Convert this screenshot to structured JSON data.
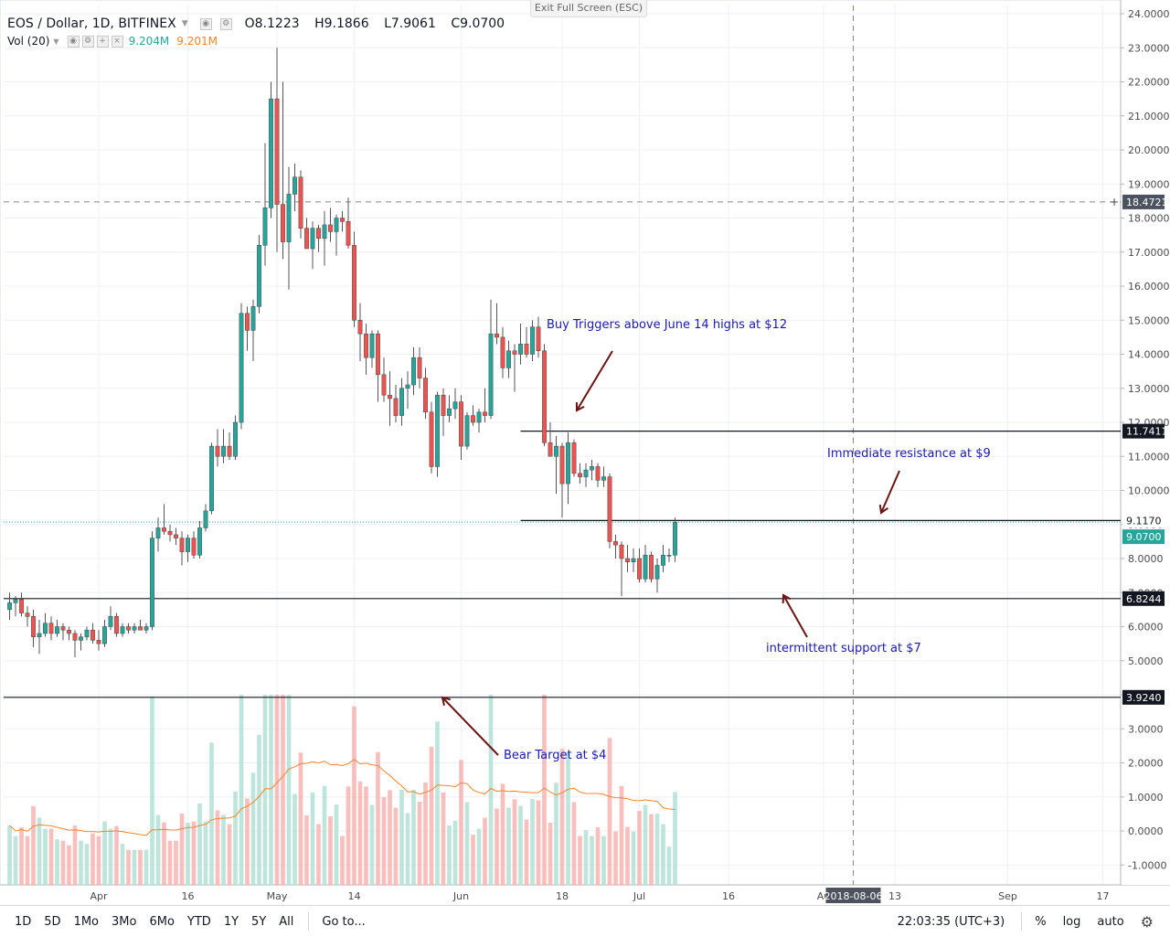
{
  "header": {
    "symbol": "EOS / Dollar, 1D, BITFINEX",
    "open": "O8.1223",
    "high": "H9.1866",
    "low": "L7.9061",
    "close": "C9.0700",
    "exit_fullscreen": "Exit Full Screen (ESC)"
  },
  "volume_legend": {
    "label": "Vol (20)",
    "value1": "9.204M",
    "value2": "9.201M"
  },
  "annotations": {
    "buy_triggers": "Buy Triggers above June 14 highs at $12",
    "immediate_resistance": "Immediate resistance at $9",
    "intermittent_support": "intermittent support at $7",
    "bear_target": "Bear Target at $4"
  },
  "price_labels": {
    "crosshair": "18.4721",
    "resistance_high": "11.7411",
    "resistance_mid": "9.1170",
    "current": "9.0700",
    "support": "6.8244",
    "bear": "3.9240",
    "crosshair_date": "2018-08-06"
  },
  "bottom_bar": {
    "timeframes": [
      "1D",
      "5D",
      "1Mo",
      "3Mo",
      "6Mo",
      "YTD",
      "1Y",
      "5Y",
      "All"
    ],
    "goto": "Go to...",
    "clock": "22:03:35 (UTC+3)",
    "percent": "%",
    "log": "log",
    "auto": "auto"
  },
  "colors": {
    "up": "#26a69a",
    "down": "#ef5350",
    "annotation": "#1a1aad",
    "volume_ma": "#f5842b"
  },
  "chart_data": {
    "type": "candlestick",
    "title": "EOS / Dollar, 1D, BITFINEX",
    "y_axis_ticks": [
      "24.0000",
      "23.0000",
      "22.0000",
      "21.0000",
      "20.0000",
      "19.0000",
      "18.0000",
      "17.0000",
      "16.0000",
      "15.0000",
      "14.0000",
      "13.0000",
      "12.0000",
      "11.0000",
      "10.0000",
      "9.0000",
      "8.0000",
      "7.0000",
      "6.0000",
      "5.0000",
      "4.0000",
      "3.0000",
      "2.0000",
      "1.0000",
      "0.0000",
      "-1.0000"
    ],
    "y_range": [
      -1.6,
      24.3
    ],
    "x_axis_ticks": [
      {
        "label": "Apr",
        "date": "2018-04-01"
      },
      {
        "label": "16",
        "date": "2018-04-16"
      },
      {
        "label": "May",
        "date": "2018-05-01"
      },
      {
        "label": "14",
        "date": "2018-05-14"
      },
      {
        "label": "Jun",
        "date": "2018-06-01"
      },
      {
        "label": "18",
        "date": "2018-06-18"
      },
      {
        "label": "Jul",
        "date": "2018-07-01"
      },
      {
        "label": "16",
        "date": "2018-07-16"
      },
      {
        "label": "Au",
        "date": "2018-08-01"
      },
      {
        "label": "13",
        "date": "2018-08-13"
      },
      {
        "label": "Sep",
        "date": "2018-09-01"
      },
      {
        "label": "17",
        "date": "2018-09-17"
      }
    ],
    "date_range": [
      "2018-03-16",
      "2018-09-20"
    ],
    "horizontal_levels": [
      {
        "value": 11.7411,
        "from": "2018-06-11"
      },
      {
        "value": 9.117,
        "from": "2018-06-11"
      },
      {
        "value": 6.8244,
        "from": "2018-03-16"
      },
      {
        "value": 3.924,
        "from": "2018-03-16"
      }
    ],
    "crosshair": {
      "value": 18.4721,
      "date": "2018-08-06"
    },
    "candles": [
      {
        "date": "2018-03-17",
        "o": 6.5,
        "h": 7.0,
        "l": 6.2,
        "c": 6.7
      },
      {
        "date": "2018-03-18",
        "o": 6.7,
        "h": 6.9,
        "l": 6.3,
        "c": 6.8
      },
      {
        "date": "2018-03-19",
        "o": 6.8,
        "h": 7.0,
        "l": 6.3,
        "c": 6.4
      },
      {
        "date": "2018-03-20",
        "o": 6.4,
        "h": 6.6,
        "l": 6.0,
        "c": 6.3
      },
      {
        "date": "2018-03-21",
        "o": 6.3,
        "h": 6.5,
        "l": 5.4,
        "c": 5.7
      },
      {
        "date": "2018-03-22",
        "o": 5.7,
        "h": 6.2,
        "l": 5.2,
        "c": 5.8
      },
      {
        "date": "2018-03-23",
        "o": 5.8,
        "h": 6.4,
        "l": 5.7,
        "c": 6.1
      },
      {
        "date": "2018-03-24",
        "o": 6.1,
        "h": 6.3,
        "l": 5.6,
        "c": 5.8
      },
      {
        "date": "2018-03-25",
        "o": 5.8,
        "h": 6.2,
        "l": 5.7,
        "c": 6.0
      },
      {
        "date": "2018-03-26",
        "o": 6.0,
        "h": 6.1,
        "l": 5.6,
        "c": 5.9
      },
      {
        "date": "2018-03-27",
        "o": 5.9,
        "h": 6.0,
        "l": 5.6,
        "c": 5.8
      },
      {
        "date": "2018-03-28",
        "o": 5.8,
        "h": 5.9,
        "l": 5.1,
        "c": 5.6
      },
      {
        "date": "2018-03-29",
        "o": 5.6,
        "h": 5.8,
        "l": 5.3,
        "c": 5.7
      },
      {
        "date": "2018-03-30",
        "o": 5.7,
        "h": 6.0,
        "l": 5.6,
        "c": 5.9
      },
      {
        "date": "2018-03-31",
        "o": 5.9,
        "h": 6.1,
        "l": 5.5,
        "c": 5.6
      },
      {
        "date": "2018-04-01",
        "o": 5.6,
        "h": 5.9,
        "l": 5.3,
        "c": 5.5
      },
      {
        "date": "2018-04-02",
        "o": 5.5,
        "h": 6.2,
        "l": 5.4,
        "c": 6.0
      },
      {
        "date": "2018-04-03",
        "o": 6.0,
        "h": 6.6,
        "l": 5.9,
        "c": 6.3
      },
      {
        "date": "2018-04-04",
        "o": 6.3,
        "h": 6.4,
        "l": 5.7,
        "c": 5.8
      },
      {
        "date": "2018-04-05",
        "o": 5.8,
        "h": 6.1,
        "l": 5.7,
        "c": 6.0
      },
      {
        "date": "2018-04-06",
        "o": 6.0,
        "h": 6.1,
        "l": 5.8,
        "c": 5.9
      },
      {
        "date": "2018-04-07",
        "o": 5.9,
        "h": 6.1,
        "l": 5.8,
        "c": 6.0
      },
      {
        "date": "2018-04-08",
        "o": 6.0,
        "h": 6.2,
        "l": 5.9,
        "c": 5.9
      },
      {
        "date": "2018-04-09",
        "o": 5.9,
        "h": 6.1,
        "l": 5.8,
        "c": 6.0
      },
      {
        "date": "2018-04-10",
        "o": 6.0,
        "h": 8.8,
        "l": 5.9,
        "c": 8.6
      },
      {
        "date": "2018-04-11",
        "o": 8.6,
        "h": 9.2,
        "l": 8.2,
        "c": 8.9
      },
      {
        "date": "2018-04-12",
        "o": 8.9,
        "h": 9.6,
        "l": 8.7,
        "c": 8.8
      },
      {
        "date": "2018-04-13",
        "o": 8.8,
        "h": 9.0,
        "l": 8.5,
        "c": 8.7
      },
      {
        "date": "2018-04-14",
        "o": 8.7,
        "h": 8.9,
        "l": 8.4,
        "c": 8.6
      },
      {
        "date": "2018-04-15",
        "o": 8.6,
        "h": 8.8,
        "l": 7.8,
        "c": 8.2
      },
      {
        "date": "2018-04-16",
        "o": 8.2,
        "h": 8.7,
        "l": 7.9,
        "c": 8.6
      },
      {
        "date": "2018-04-17",
        "o": 8.6,
        "h": 8.8,
        "l": 8.0,
        "c": 8.1
      },
      {
        "date": "2018-04-18",
        "o": 8.1,
        "h": 9.1,
        "l": 8.0,
        "c": 8.9
      },
      {
        "date": "2018-04-19",
        "o": 8.9,
        "h": 9.6,
        "l": 8.8,
        "c": 9.4
      },
      {
        "date": "2018-04-20",
        "o": 9.4,
        "h": 11.4,
        "l": 9.3,
        "c": 11.3
      },
      {
        "date": "2018-04-21",
        "o": 11.3,
        "h": 11.8,
        "l": 10.7,
        "c": 11.0
      },
      {
        "date": "2018-04-22",
        "o": 11.0,
        "h": 11.8,
        "l": 10.8,
        "c": 11.3
      },
      {
        "date": "2018-04-23",
        "o": 11.3,
        "h": 11.7,
        "l": 10.9,
        "c": 11.0
      },
      {
        "date": "2018-04-24",
        "o": 11.0,
        "h": 12.2,
        "l": 10.9,
        "c": 12.0
      },
      {
        "date": "2018-04-25",
        "o": 12.0,
        "h": 15.5,
        "l": 11.8,
        "c": 15.2
      },
      {
        "date": "2018-04-26",
        "o": 15.2,
        "h": 15.4,
        "l": 14.1,
        "c": 14.7
      },
      {
        "date": "2018-04-27",
        "o": 14.7,
        "h": 15.6,
        "l": 13.8,
        "c": 15.4
      },
      {
        "date": "2018-04-28",
        "o": 15.4,
        "h": 17.5,
        "l": 15.2,
        "c": 17.2
      },
      {
        "date": "2018-04-29",
        "o": 17.2,
        "h": 20.2,
        "l": 16.6,
        "c": 18.3
      },
      {
        "date": "2018-04-30",
        "o": 18.3,
        "h": 22.0,
        "l": 18.0,
        "c": 21.5
      },
      {
        "date": "2018-05-01",
        "o": 21.5,
        "h": 23.0,
        "l": 17.0,
        "c": 18.4
      },
      {
        "date": "2018-05-02",
        "o": 18.4,
        "h": 22.0,
        "l": 16.8,
        "c": 17.3
      },
      {
        "date": "2018-05-03",
        "o": 17.3,
        "h": 19.5,
        "l": 15.9,
        "c": 18.7
      },
      {
        "date": "2018-05-04",
        "o": 18.7,
        "h": 19.6,
        "l": 18.2,
        "c": 19.2
      },
      {
        "date": "2018-05-05",
        "o": 19.2,
        "h": 19.4,
        "l": 17.4,
        "c": 17.7
      },
      {
        "date": "2018-05-06",
        "o": 17.7,
        "h": 18.0,
        "l": 17.1,
        "c": 17.1
      },
      {
        "date": "2018-05-07",
        "o": 17.1,
        "h": 17.9,
        "l": 16.5,
        "c": 17.7
      },
      {
        "date": "2018-05-08",
        "o": 17.7,
        "h": 17.8,
        "l": 17.0,
        "c": 17.4
      },
      {
        "date": "2018-05-09",
        "o": 17.4,
        "h": 18.2,
        "l": 16.6,
        "c": 17.8
      },
      {
        "date": "2018-05-10",
        "o": 17.8,
        "h": 18.3,
        "l": 17.3,
        "c": 17.6
      },
      {
        "date": "2018-05-11",
        "o": 17.6,
        "h": 18.1,
        "l": 16.9,
        "c": 18.0
      },
      {
        "date": "2018-05-12",
        "o": 18.0,
        "h": 18.2,
        "l": 17.6,
        "c": 17.9
      },
      {
        "date": "2018-05-13",
        "o": 17.9,
        "h": 18.6,
        "l": 17.1,
        "c": 17.2
      },
      {
        "date": "2018-05-14",
        "o": 17.2,
        "h": 17.6,
        "l": 14.8,
        "c": 15.0
      },
      {
        "date": "2018-05-15",
        "o": 15.0,
        "h": 15.5,
        "l": 13.8,
        "c": 14.6
      },
      {
        "date": "2018-05-16",
        "o": 14.6,
        "h": 14.9,
        "l": 13.4,
        "c": 13.9
      },
      {
        "date": "2018-05-17",
        "o": 13.9,
        "h": 14.7,
        "l": 13.6,
        "c": 14.6
      },
      {
        "date": "2018-05-18",
        "o": 14.6,
        "h": 14.7,
        "l": 12.6,
        "c": 13.4
      },
      {
        "date": "2018-05-19",
        "o": 13.4,
        "h": 13.9,
        "l": 12.6,
        "c": 12.8
      },
      {
        "date": "2018-05-20",
        "o": 12.8,
        "h": 13.5,
        "l": 11.9,
        "c": 12.7
      },
      {
        "date": "2018-05-21",
        "o": 12.7,
        "h": 13.1,
        "l": 12.0,
        "c": 12.2
      },
      {
        "date": "2018-05-22",
        "o": 12.2,
        "h": 13.3,
        "l": 11.9,
        "c": 13.0
      },
      {
        "date": "2018-05-23",
        "o": 13.0,
        "h": 13.5,
        "l": 12.4,
        "c": 13.1
      },
      {
        "date": "2018-05-24",
        "o": 13.1,
        "h": 14.2,
        "l": 12.8,
        "c": 13.9
      },
      {
        "date": "2018-05-25",
        "o": 13.9,
        "h": 14.2,
        "l": 13.0,
        "c": 13.3
      },
      {
        "date": "2018-05-26",
        "o": 13.3,
        "h": 13.6,
        "l": 12.1,
        "c": 12.3
      },
      {
        "date": "2018-05-27",
        "o": 12.3,
        "h": 12.6,
        "l": 10.5,
        "c": 10.7
      },
      {
        "date": "2018-05-28",
        "o": 10.7,
        "h": 12.9,
        "l": 10.4,
        "c": 12.8
      },
      {
        "date": "2018-05-29",
        "o": 12.8,
        "h": 13.0,
        "l": 11.6,
        "c": 12.2
      },
      {
        "date": "2018-05-30",
        "o": 12.2,
        "h": 12.8,
        "l": 12.0,
        "c": 12.4
      },
      {
        "date": "2018-05-31",
        "o": 12.4,
        "h": 13.0,
        "l": 12.1,
        "c": 12.6
      },
      {
        "date": "2018-06-01",
        "o": 12.6,
        "h": 12.8,
        "l": 10.9,
        "c": 11.3
      },
      {
        "date": "2018-06-02",
        "o": 11.3,
        "h": 12.3,
        "l": 11.2,
        "c": 12.2
      },
      {
        "date": "2018-06-03",
        "o": 12.2,
        "h": 12.5,
        "l": 11.9,
        "c": 12.0
      },
      {
        "date": "2018-06-04",
        "o": 12.0,
        "h": 12.4,
        "l": 11.7,
        "c": 12.3
      },
      {
        "date": "2018-06-05",
        "o": 12.3,
        "h": 13.0,
        "l": 12.0,
        "c": 12.2
      },
      {
        "date": "2018-06-06",
        "o": 12.2,
        "h": 15.6,
        "l": 12.1,
        "c": 14.6
      },
      {
        "date": "2018-06-07",
        "o": 14.6,
        "h": 15.5,
        "l": 14.3,
        "c": 14.5
      },
      {
        "date": "2018-06-08",
        "o": 14.5,
        "h": 14.8,
        "l": 13.3,
        "c": 13.6
      },
      {
        "date": "2018-06-09",
        "o": 13.6,
        "h": 14.4,
        "l": 13.3,
        "c": 14.1
      },
      {
        "date": "2018-06-10",
        "o": 14.1,
        "h": 14.3,
        "l": 12.9,
        "c": 14.0
      },
      {
        "date": "2018-06-11",
        "o": 14.0,
        "h": 14.9,
        "l": 13.7,
        "c": 14.3
      },
      {
        "date": "2018-06-12",
        "o": 14.3,
        "h": 14.8,
        "l": 13.9,
        "c": 14.0
      },
      {
        "date": "2018-06-13",
        "o": 14.0,
        "h": 15.0,
        "l": 13.8,
        "c": 14.8
      },
      {
        "date": "2018-06-14",
        "o": 14.8,
        "h": 15.1,
        "l": 13.9,
        "c": 14.1
      },
      {
        "date": "2018-06-15",
        "o": 14.1,
        "h": 14.3,
        "l": 11.3,
        "c": 11.4
      },
      {
        "date": "2018-06-16",
        "o": 11.4,
        "h": 12.0,
        "l": 11.2,
        "c": 11.0
      },
      {
        "date": "2018-06-17",
        "o": 11.0,
        "h": 11.6,
        "l": 9.9,
        "c": 11.3
      },
      {
        "date": "2018-06-18",
        "o": 11.3,
        "h": 11.4,
        "l": 9.2,
        "c": 10.2
      },
      {
        "date": "2018-06-19",
        "o": 10.2,
        "h": 11.7,
        "l": 9.6,
        "c": 11.4
      },
      {
        "date": "2018-06-20",
        "o": 11.4,
        "h": 11.5,
        "l": 10.4,
        "c": 10.5
      },
      {
        "date": "2018-06-21",
        "o": 10.5,
        "h": 10.8,
        "l": 10.2,
        "c": 10.4
      },
      {
        "date": "2018-06-22",
        "o": 10.4,
        "h": 10.8,
        "l": 10.1,
        "c": 10.6
      },
      {
        "date": "2018-06-23",
        "o": 10.6,
        "h": 10.9,
        "l": 10.3,
        "c": 10.7
      },
      {
        "date": "2018-06-24",
        "o": 10.7,
        "h": 10.8,
        "l": 10.1,
        "c": 10.3
      },
      {
        "date": "2018-06-25",
        "o": 10.3,
        "h": 10.7,
        "l": 10.1,
        "c": 10.4
      },
      {
        "date": "2018-06-26",
        "o": 10.4,
        "h": 10.5,
        "l": 8.3,
        "c": 8.5
      },
      {
        "date": "2018-06-27",
        "o": 8.5,
        "h": 8.7,
        "l": 8.0,
        "c": 8.4
      },
      {
        "date": "2018-06-28",
        "o": 8.4,
        "h": 8.5,
        "l": 6.9,
        "c": 8.0
      },
      {
        "date": "2018-06-29",
        "o": 8.0,
        "h": 8.4,
        "l": 7.6,
        "c": 7.9
      },
      {
        "date": "2018-06-30",
        "o": 7.9,
        "h": 8.3,
        "l": 7.6,
        "c": 8.0
      },
      {
        "date": "2018-07-01",
        "o": 8.0,
        "h": 8.3,
        "l": 7.3,
        "c": 7.4
      },
      {
        "date": "2018-07-02",
        "o": 7.4,
        "h": 8.4,
        "l": 7.3,
        "c": 8.1
      },
      {
        "date": "2018-07-03",
        "o": 8.1,
        "h": 8.2,
        "l": 7.3,
        "c": 7.4
      },
      {
        "date": "2018-07-04",
        "o": 7.4,
        "h": 8.0,
        "l": 7.0,
        "c": 7.8
      },
      {
        "date": "2018-07-05",
        "o": 7.8,
        "h": 8.4,
        "l": 7.6,
        "c": 8.1
      },
      {
        "date": "2018-07-06",
        "o": 8.1,
        "h": 8.3,
        "l": 7.9,
        "c": 8.1
      },
      {
        "date": "2018-07-07",
        "o": 8.1,
        "h": 9.2,
        "l": 7.9,
        "c": 9.07
      }
    ],
    "volume_axis_ticks": [
      "4.0000",
      "3.0000",
      "2.0000",
      "1.0000",
      "0.0000",
      "-1.0000"
    ],
    "volume_scale": {
      "axis_zero_value": 0.0,
      "bar_base_value": -1.6
    }
  }
}
